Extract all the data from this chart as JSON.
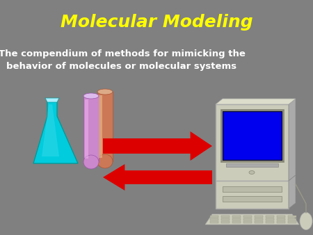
{
  "background_color": "#808080",
  "title": "Molecular Modeling",
  "title_color": "#FFFF00",
  "title_fontsize": 18,
  "subtitle_line1": "The compendium of methods for mimicking the",
  "subtitle_line2": "behavior of molecules or molecular systems",
  "subtitle_color": "#FFFFFF",
  "subtitle_fontsize": 9.5,
  "arrow_color": "#DD0000",
  "flask_color": "#00CCDD",
  "flask_shadow": "#009999",
  "tube1_color": "#CC88CC",
  "tube1_shadow": "#9955AA",
  "tube2_color": "#CC7755",
  "tube2_shadow": "#AA5533",
  "monitor_body": "#CCCCBB",
  "monitor_dark": "#AAAAAA",
  "screen_color": "#0000EE",
  "keyboard_color": "#CCCCBB"
}
